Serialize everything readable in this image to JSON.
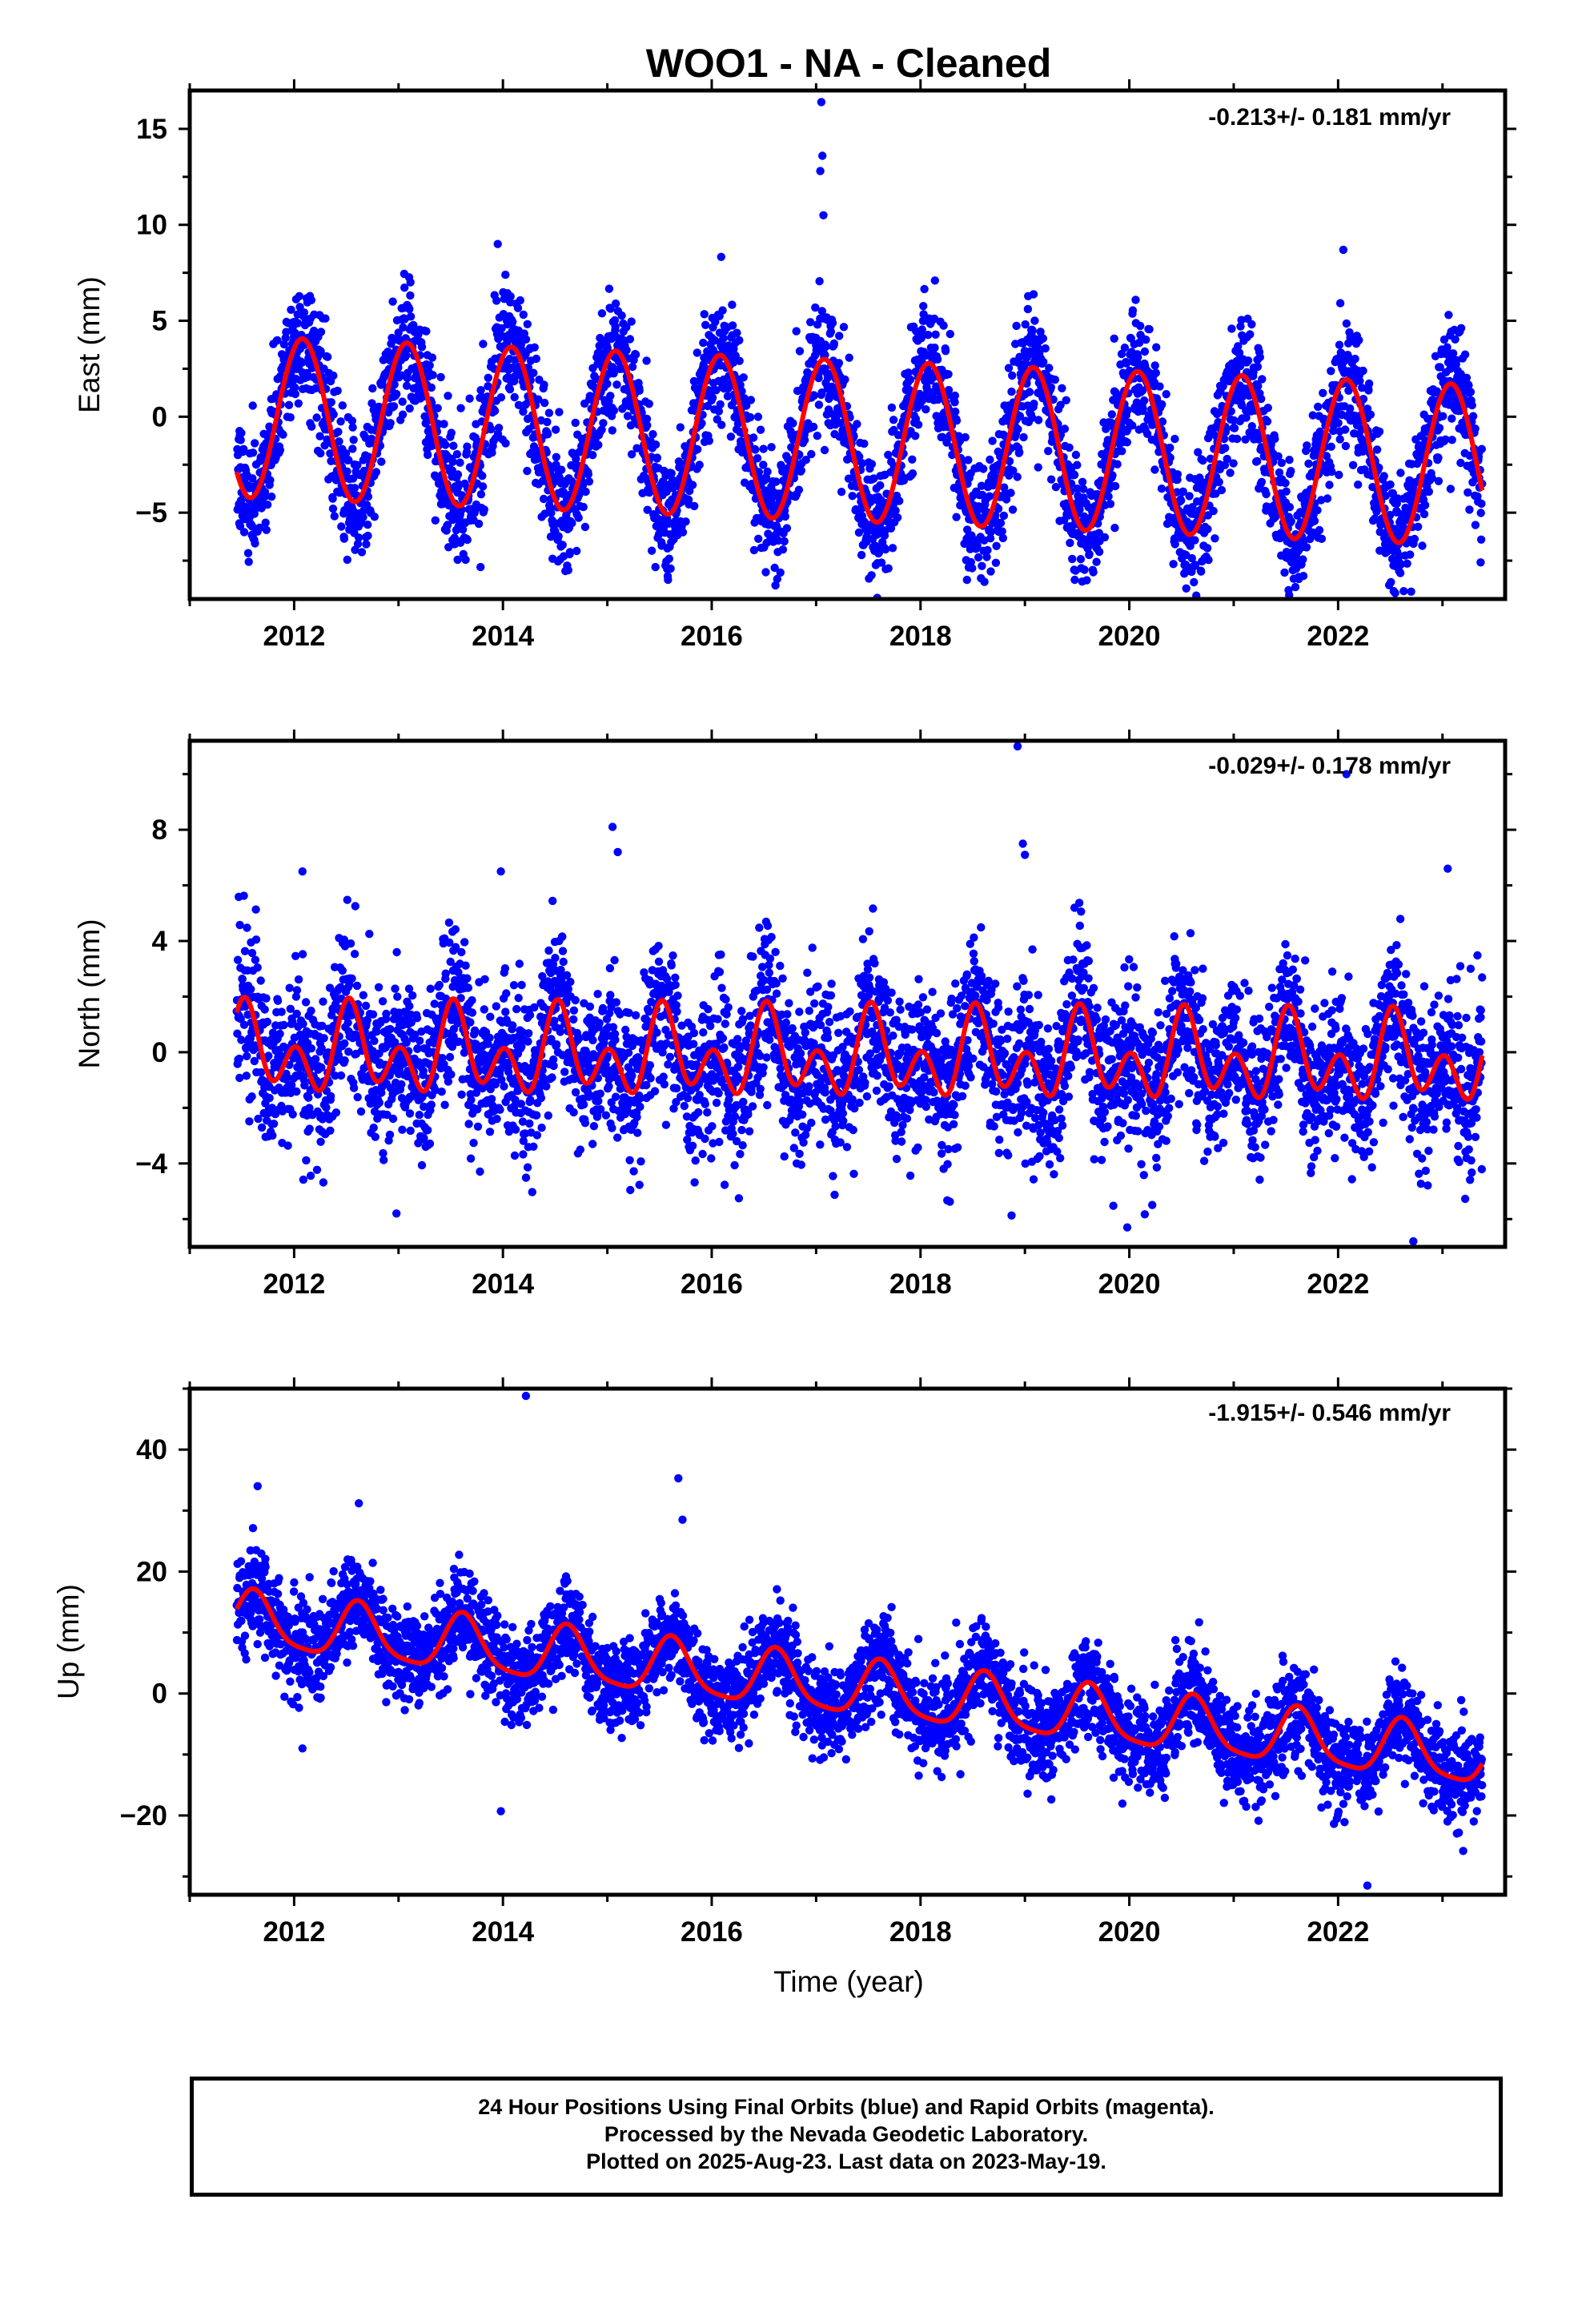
{
  "title": "WOO1  - NA - Cleaned",
  "xlabel": "Time (year)",
  "caption": {
    "line1": "24 Hour Positions Using Final Orbits (blue) and Rapid Orbits (magenta).",
    "line2": "Processed by the Nevada Geodetic Laboratory.",
    "line3": "Plotted on 2025-Aug-23. Last data on 2023-May-19."
  },
  "colors": {
    "points": "#0000ff",
    "fit": "#ff0000",
    "axes": "#000000"
  },
  "chart_data": [
    {
      "id": "east",
      "type": "scatter",
      "ylabel": "East (mm)",
      "rate": "-0.213+/- 0.181 mm/yr",
      "xlim": [
        2011.0,
        2023.6
      ],
      "ylim": [
        -9.5,
        17
      ],
      "xticks": [
        2012,
        2014,
        2016,
        2018,
        2020,
        2022
      ],
      "yticks": [
        -5,
        0,
        5,
        10,
        15
      ],
      "x_start": 2011.45,
      "x_end": 2023.38,
      "fit": {
        "offset": 0.0,
        "rate": -0.213,
        "annual_amplitude": 4.2,
        "annual_peak_fraction": 0.08,
        "semiannual_amplitude": 0.0,
        "semiannual_peak_fraction": 0.0
      },
      "scatter_sd": 1.6,
      "outliers": [
        [
          2017.05,
          16.4
        ],
        [
          2017.06,
          13.6
        ],
        [
          2017.04,
          12.8
        ],
        [
          2017.07,
          10.5
        ],
        [
          2022.05,
          8.7
        ],
        [
          2013.95,
          9.0
        ]
      ]
    },
    {
      "id": "north",
      "type": "scatter",
      "ylabel": "North (mm)",
      "rate": "-0.029+/- 0.178 mm/yr",
      "xlim": [
        2011.0,
        2023.6
      ],
      "ylim": [
        -7.0,
        11.2
      ],
      "xticks": [
        2012,
        2014,
        2016,
        2018,
        2020,
        2022
      ],
      "yticks": [
        -4,
        0,
        4,
        8
      ],
      "x_start": 2011.45,
      "x_end": 2023.38,
      "fit": {
        "offset": 0.0,
        "rate": -0.029,
        "annual_amplitude": 0.9,
        "annual_peak_fraction": 0.55,
        "semiannual_amplitude": 1.1,
        "semiannual_peak_fraction": 0.02
      },
      "scatter_sd": 1.4,
      "outliers": [
        [
          2018.93,
          11.0
        ],
        [
          2022.08,
          10.0
        ],
        [
          2015.05,
          8.1
        ],
        [
          2015.1,
          7.2
        ],
        [
          2018.98,
          7.5
        ],
        [
          2019.0,
          7.1
        ],
        [
          2023.05,
          6.6
        ],
        [
          2012.08,
          6.5
        ],
        [
          2013.98,
          6.5
        ],
        [
          2022.72,
          -6.8
        ],
        [
          2012.98,
          -5.8
        ],
        [
          2019.98,
          -6.3
        ]
      ]
    },
    {
      "id": "up",
      "type": "scatter",
      "ylabel": "Up (mm)",
      "rate": "-1.915+/- 0.546 mm/yr",
      "xlim": [
        2011.0,
        2023.6
      ],
      "ylim": [
        -33,
        50
      ],
      "xticks": [
        2012,
        2014,
        2016,
        2018,
        2020,
        2022
      ],
      "yticks": [
        -20,
        0,
        20,
        40
      ],
      "x_start": 2011.45,
      "x_end": 2023.38,
      "fit": {
        "offset": 12.0,
        "rate": -1.915,
        "annual_amplitude": 4.5,
        "annual_peak_fraction": 0.62,
        "semiannual_amplitude": 1.0,
        "semiannual_peak_fraction": 0.1
      },
      "scatter_sd": 3.8,
      "outliers": [
        [
          2014.22,
          48.8
        ],
        [
          2015.68,
          35.3
        ],
        [
          2015.72,
          28.5
        ],
        [
          2011.65,
          34.0
        ],
        [
          2012.62,
          31.2
        ],
        [
          2013.98,
          -19.3
        ],
        [
          2022.28,
          -31.5
        ],
        [
          2012.08,
          -9.0
        ]
      ]
    }
  ]
}
